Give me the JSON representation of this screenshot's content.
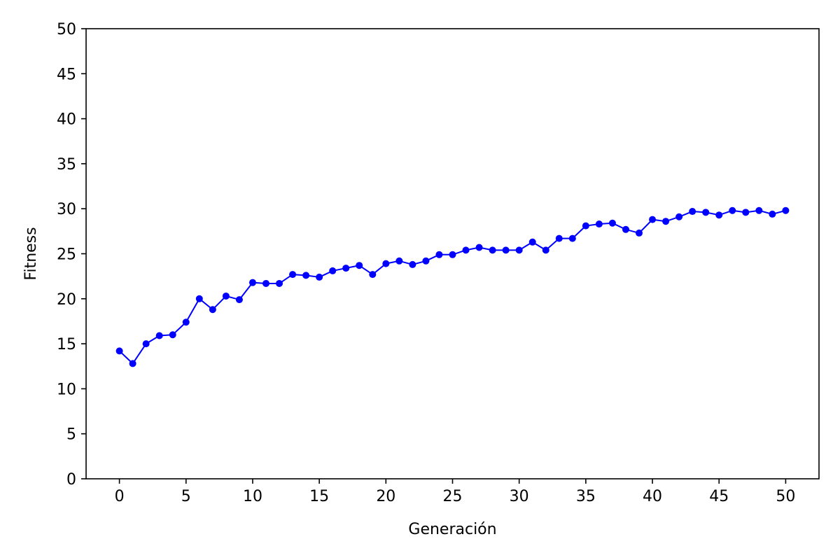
{
  "chart_data": {
    "type": "line",
    "xlabel": "Generación",
    "ylabel": "Fitness",
    "xlim": [
      -2.5,
      52.5
    ],
    "ylim": [
      0,
      50
    ],
    "x_ticks": [
      0,
      5,
      10,
      15,
      20,
      25,
      30,
      35,
      40,
      45,
      50
    ],
    "y_ticks": [
      0,
      5,
      10,
      15,
      20,
      25,
      30,
      35,
      40,
      45,
      50
    ],
    "grid": false,
    "series": [
      {
        "color": "#0000ff",
        "marker": "circle",
        "x": [
          0,
          1,
          2,
          3,
          4,
          5,
          6,
          7,
          8,
          9,
          10,
          11,
          12,
          13,
          14,
          15,
          16,
          17,
          18,
          19,
          20,
          21,
          22,
          23,
          24,
          25,
          26,
          27,
          28,
          29,
          30,
          31,
          32,
          33,
          34,
          35,
          36,
          37,
          38,
          39,
          40,
          41,
          42,
          43,
          44,
          45,
          46,
          47,
          48,
          49,
          50
        ],
        "y": [
          14.2,
          12.8,
          15.0,
          15.9,
          16.0,
          17.4,
          20.0,
          18.8,
          20.3,
          19.9,
          21.8,
          21.7,
          21.7,
          22.7,
          22.6,
          22.4,
          23.1,
          23.4,
          23.7,
          22.7,
          23.9,
          24.2,
          23.8,
          24.2,
          24.9,
          24.9,
          25.4,
          25.7,
          25.4,
          25.4,
          25.4,
          26.3,
          25.4,
          26.7,
          26.7,
          28.1,
          28.3,
          28.4,
          27.7,
          27.3,
          28.8,
          28.6,
          29.1,
          29.7,
          29.6,
          29.3,
          29.8,
          29.6,
          29.8,
          29.4,
          29.8
        ]
      }
    ]
  }
}
